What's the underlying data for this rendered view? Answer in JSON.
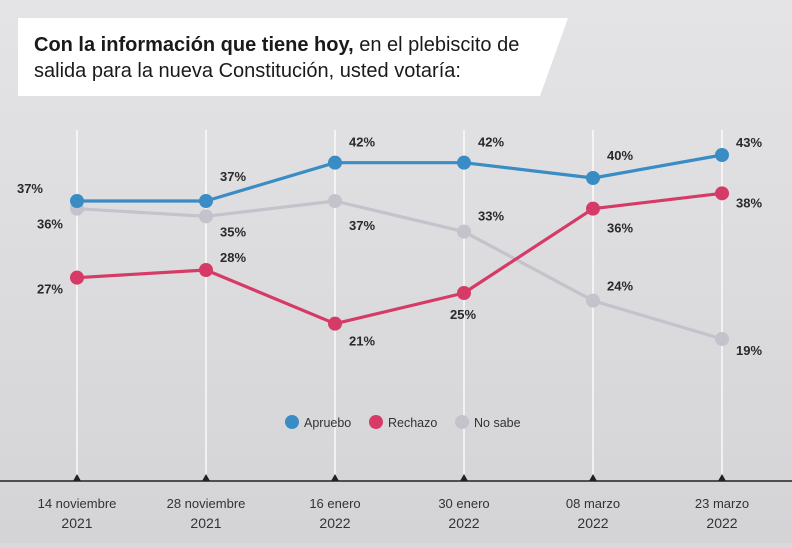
{
  "title": {
    "bold": "Con la información que tiene hoy,",
    "normal": " en el plebiscito de salida para la nueva Constitución, usted votaría:"
  },
  "chart_data": {
    "type": "line",
    "title": "Con la información que tiene hoy, en el plebiscito de salida para la nueva Constitución, usted votaría:",
    "xlabel": "",
    "ylabel": "",
    "categories": [
      [
        "14 noviembre",
        "2021"
      ],
      [
        "28 noviembre",
        "2021"
      ],
      [
        "16 enero",
        "2022"
      ],
      [
        "30 enero",
        "2022"
      ],
      [
        "08 marzo",
        "2022"
      ],
      [
        "23 marzo",
        "2022"
      ]
    ],
    "series": [
      {
        "name": "Apruebo",
        "color": "#3a8cc4",
        "values": [
          37,
          37,
          42,
          42,
          40,
          43
        ],
        "labels": [
          "37%",
          "37%",
          "42%",
          "42%",
          "40%",
          "43%"
        ]
      },
      {
        "name": "Rechazo",
        "color": "#d63a67",
        "values": [
          27,
          28,
          21,
          25,
          36,
          38
        ],
        "labels": [
          "27%",
          "28%",
          "21%",
          "25%",
          "36%",
          "38%"
        ]
      },
      {
        "name": "No sabe",
        "color": "#c3c3cb",
        "values": [
          36,
          35,
          37,
          33,
          24,
          19
        ],
        "labels": [
          "36%",
          "35%",
          "37%",
          "33%",
          "24%",
          "19%"
        ]
      }
    ],
    "legend": [
      "Apruebo",
      "Rechazo",
      "No sabe"
    ],
    "legend_position": "bottom-center",
    "grid": false
  }
}
